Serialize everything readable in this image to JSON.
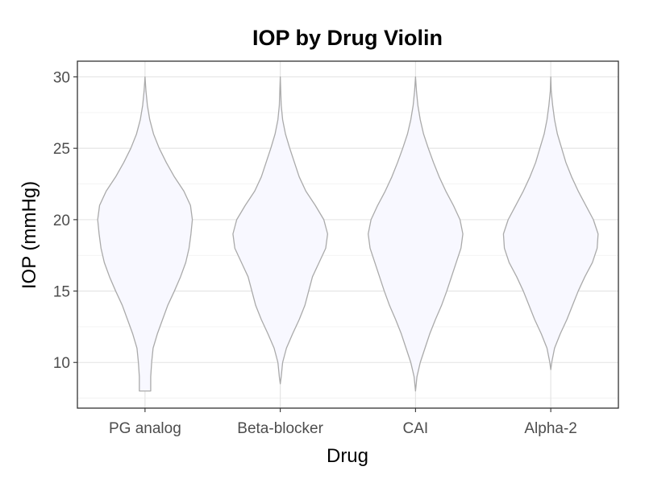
{
  "chart_data": {
    "type": "violin",
    "title": "IOP by Drug Violin",
    "xlabel": "Drug",
    "ylabel": "IOP (mmHg)",
    "categories": [
      "PG analog",
      "Beta-blocker",
      "CAI",
      "Alpha-2"
    ],
    "ylim": [
      6.8,
      31.1
    ],
    "yticks": [
      10,
      15,
      20,
      25,
      30
    ],
    "grid": true,
    "violin_fill": "#f8f8ff",
    "violin_stroke": "#aaaaaa",
    "series": [
      {
        "category": "PG analog",
        "min": 8.0,
        "max": 30.0,
        "density": [
          [
            8.0,
            0.12
          ],
          [
            8.5,
            0.12
          ],
          [
            9.0,
            0.12
          ],
          [
            10.0,
            0.14
          ],
          [
            11.0,
            0.17
          ],
          [
            12.0,
            0.26
          ],
          [
            13.0,
            0.37
          ],
          [
            14.0,
            0.48
          ],
          [
            15.0,
            0.62
          ],
          [
            16.0,
            0.75
          ],
          [
            17.0,
            0.86
          ],
          [
            18.0,
            0.93
          ],
          [
            19.0,
            0.97
          ],
          [
            20.0,
            1.0
          ],
          [
            21.0,
            0.96
          ],
          [
            22.0,
            0.82
          ],
          [
            23.0,
            0.62
          ],
          [
            24.0,
            0.45
          ],
          [
            25.0,
            0.3
          ],
          [
            26.0,
            0.18
          ],
          [
            27.0,
            0.1
          ],
          [
            28.0,
            0.05
          ],
          [
            29.0,
            0.02
          ],
          [
            30.0,
            0.0
          ]
        ]
      },
      {
        "category": "Beta-blocker",
        "min": 8.5,
        "max": 30.0,
        "density": [
          [
            8.5,
            0.0
          ],
          [
            9.0,
            0.02
          ],
          [
            10.0,
            0.05
          ],
          [
            11.0,
            0.13
          ],
          [
            12.0,
            0.26
          ],
          [
            13.0,
            0.4
          ],
          [
            14.0,
            0.52
          ],
          [
            15.0,
            0.6
          ],
          [
            16.0,
            0.68
          ],
          [
            17.0,
            0.82
          ],
          [
            18.0,
            0.96
          ],
          [
            19.0,
            1.0
          ],
          [
            20.0,
            0.92
          ],
          [
            21.0,
            0.74
          ],
          [
            22.0,
            0.54
          ],
          [
            23.0,
            0.4
          ],
          [
            24.0,
            0.3
          ],
          [
            25.0,
            0.2
          ],
          [
            26.0,
            0.11
          ],
          [
            27.0,
            0.05
          ],
          [
            28.0,
            0.02
          ],
          [
            29.0,
            0.01
          ],
          [
            30.0,
            0.0
          ]
        ]
      },
      {
        "category": "CAI",
        "min": 8.0,
        "max": 30.0,
        "density": [
          [
            8.0,
            0.0
          ],
          [
            9.0,
            0.03
          ],
          [
            10.0,
            0.1
          ],
          [
            11.0,
            0.2
          ],
          [
            12.0,
            0.3
          ],
          [
            13.0,
            0.42
          ],
          [
            14.0,
            0.55
          ],
          [
            15.0,
            0.66
          ],
          [
            16.0,
            0.76
          ],
          [
            17.0,
            0.86
          ],
          [
            18.0,
            0.96
          ],
          [
            19.0,
            1.0
          ],
          [
            20.0,
            0.94
          ],
          [
            21.0,
            0.8
          ],
          [
            22.0,
            0.64
          ],
          [
            23.0,
            0.5
          ],
          [
            24.0,
            0.38
          ],
          [
            25.0,
            0.27
          ],
          [
            26.0,
            0.17
          ],
          [
            27.0,
            0.1
          ],
          [
            28.0,
            0.05
          ],
          [
            29.0,
            0.02
          ],
          [
            30.0,
            0.0
          ]
        ]
      },
      {
        "category": "Alpha-2",
        "min": 9.5,
        "max": 30.0,
        "density": [
          [
            9.5,
            0.0
          ],
          [
            10.0,
            0.02
          ],
          [
            11.0,
            0.08
          ],
          [
            12.0,
            0.2
          ],
          [
            13.0,
            0.34
          ],
          [
            14.0,
            0.46
          ],
          [
            15.0,
            0.58
          ],
          [
            16.0,
            0.72
          ],
          [
            17.0,
            0.88
          ],
          [
            18.0,
            0.98
          ],
          [
            19.0,
            1.0
          ],
          [
            20.0,
            0.9
          ],
          [
            21.0,
            0.74
          ],
          [
            22.0,
            0.58
          ],
          [
            23.0,
            0.44
          ],
          [
            24.0,
            0.32
          ],
          [
            25.0,
            0.23
          ],
          [
            26.0,
            0.14
          ],
          [
            27.0,
            0.08
          ],
          [
            28.0,
            0.04
          ],
          [
            29.0,
            0.01
          ],
          [
            30.0,
            0.0
          ]
        ]
      }
    ]
  }
}
